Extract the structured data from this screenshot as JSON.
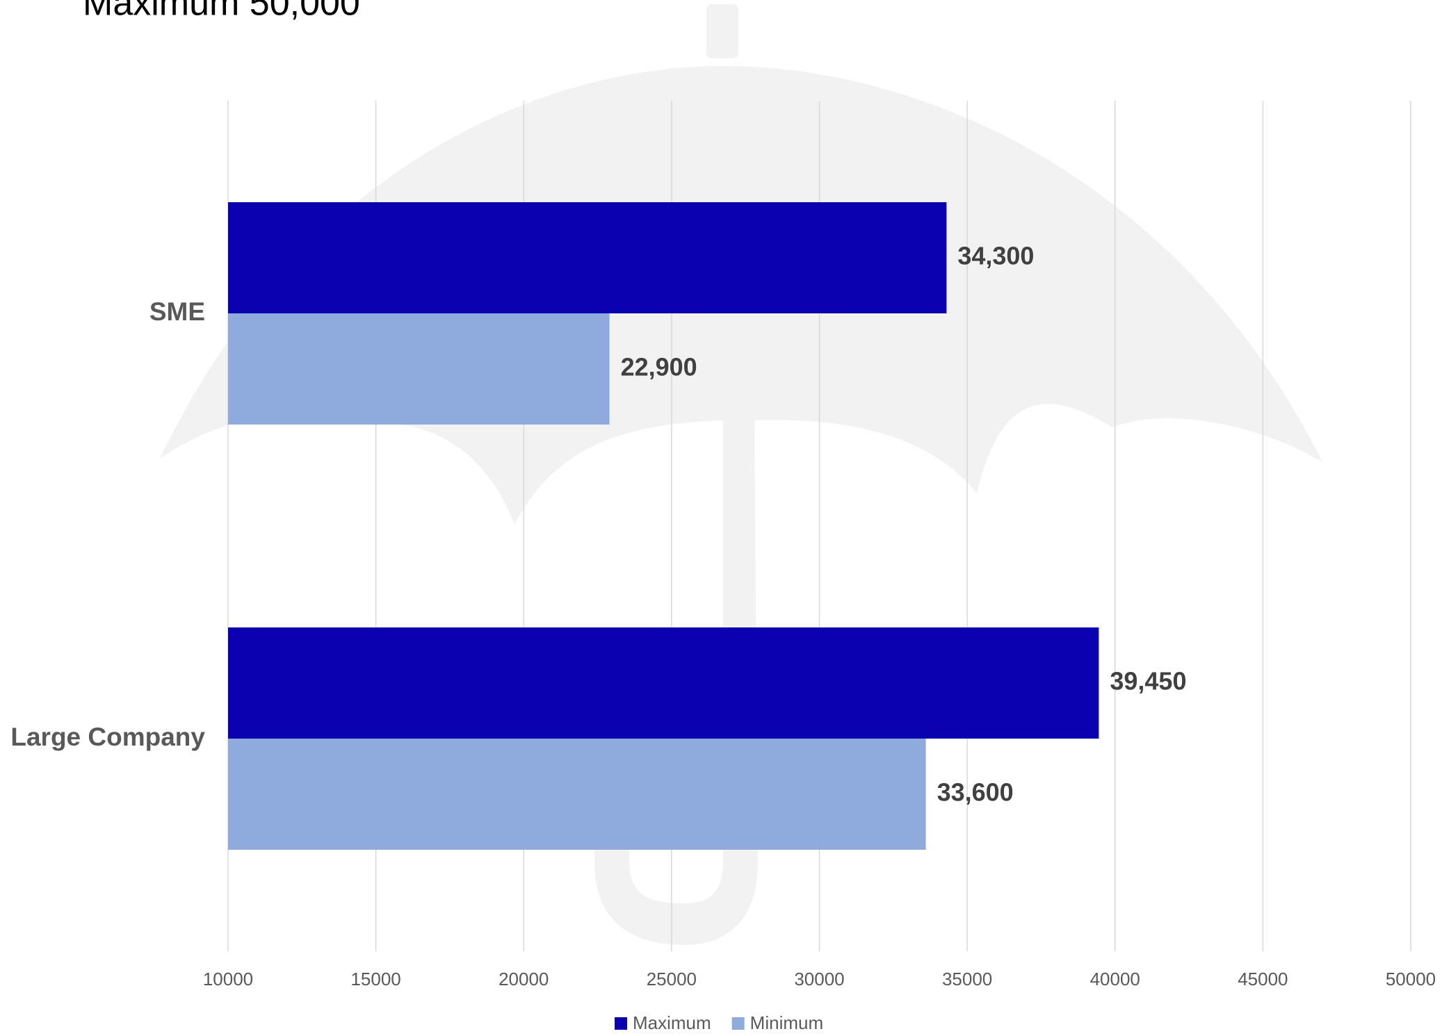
{
  "chart_data": {
    "type": "hbar",
    "annotation": "Maximum 50,000",
    "categories": [
      "SME",
      "Large Company"
    ],
    "series": [
      {
        "name": "Maximum",
        "color": "#0a00ad",
        "values": [
          34300,
          39450
        ],
        "value_labels": [
          "34,300",
          "39,450"
        ]
      },
      {
        "name": "Minimum",
        "color": "#8faadc",
        "values": [
          22900,
          33600
        ],
        "value_labels": [
          "22,900",
          "33,600"
        ]
      }
    ],
    "xlim": [
      10000,
      50000
    ],
    "xticks": [
      10000,
      15000,
      20000,
      25000,
      30000,
      35000,
      40000,
      45000,
      50000
    ],
    "grid": true,
    "legend": "bottom"
  }
}
